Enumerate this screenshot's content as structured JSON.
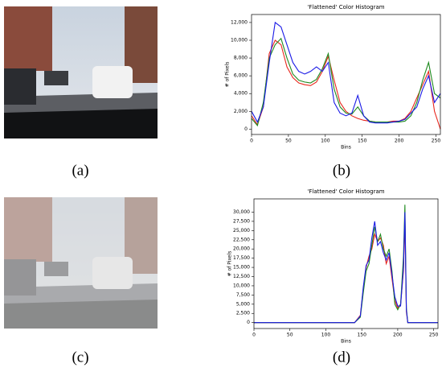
{
  "captions": [
    "(a)",
    "(b)",
    "(c)",
    "(d)"
  ],
  "chart_data": [
    {
      "type": "line",
      "title": "'Flattened' Color Histogram",
      "xlabel": "Bins",
      "ylabel": "# of Pixels",
      "x": [
        0,
        8,
        16,
        24,
        32,
        40,
        48,
        56,
        64,
        72,
        80,
        88,
        96,
        104,
        112,
        120,
        128,
        136,
        144,
        152,
        160,
        168,
        176,
        184,
        192,
        200,
        208,
        216,
        224,
        232,
        240,
        248,
        256
      ],
      "series": [
        {
          "name": "red",
          "color": "#e8261c",
          "values": [
            1500,
            500,
            2500,
            8500,
            10000,
            9500,
            7000,
            5800,
            5200,
            5000,
            4900,
            5300,
            6500,
            8200,
            5500,
            3000,
            2000,
            1500,
            1200,
            1000,
            900,
            800,
            800,
            800,
            900,
            900,
            1200,
            2000,
            3500,
            5000,
            6500,
            2000,
            0
          ]
        },
        {
          "name": "green",
          "color": "#1f8a1f",
          "values": [
            1200,
            400,
            3000,
            8000,
            9500,
            10200,
            8000,
            6200,
            5500,
            5300,
            5200,
            5600,
            6800,
            8500,
            4500,
            2500,
            1800,
            1700,
            2500,
            1500,
            900,
            800,
            800,
            800,
            800,
            800,
            900,
            1500,
            3000,
            5500,
            7500,
            4000,
            3500
          ]
        },
        {
          "name": "blue",
          "color": "#1a1ae6",
          "values": [
            2000,
            800,
            2500,
            7500,
            12000,
            11500,
            9500,
            7500,
            6500,
            6200,
            6500,
            7000,
            6500,
            7500,
            3000,
            1800,
            1500,
            1800,
            3800,
            1500,
            800,
            700,
            700,
            700,
            800,
            900,
            1100,
            1800,
            2500,
            4500,
            6000,
            3000,
            4000
          ]
        }
      ],
      "xlim": [
        0,
        256
      ],
      "xticks": [
        0,
        50,
        100,
        150,
        200,
        250
      ],
      "ylim": [
        -600,
        12900
      ],
      "yticks": [
        0,
        {
          "value": 2000,
          "label": "2,000"
        },
        {
          "value": 4000,
          "label": "4,000"
        },
        {
          "value": 6000,
          "label": "6,000"
        },
        {
          "value": 8000,
          "label": "8,000"
        },
        {
          "value": 10000,
          "label": "10,000"
        },
        {
          "value": 12000,
          "label": "12,000"
        }
      ]
    },
    {
      "type": "line",
      "title": "'Flattened' Color Histogram",
      "xlabel": "Bins",
      "ylabel": "# of Pixels",
      "x": [
        0,
        50,
        100,
        140,
        148,
        152,
        156,
        160,
        164,
        168,
        172,
        176,
        180,
        184,
        188,
        192,
        196,
        200,
        204,
        208,
        210,
        212,
        214,
        218,
        230,
        256
      ],
      "series": [
        {
          "name": "red",
          "color": "#e8261c",
          "values": [
            0,
            0,
            0,
            0,
            2000,
            9000,
            15000,
            18000,
            20000,
            24000,
            22000,
            23000,
            21000,
            16000,
            18000,
            12000,
            6000,
            4000,
            5000,
            14000,
            28000,
            3000,
            0,
            0,
            0,
            0
          ]
        },
        {
          "name": "green",
          "color": "#1f8a1f",
          "values": [
            0,
            0,
            0,
            0,
            1500,
            8000,
            14000,
            16000,
            21000,
            26000,
            22000,
            24000,
            20000,
            18000,
            20000,
            14000,
            5000,
            3500,
            5000,
            18000,
            32000,
            4000,
            0,
            0,
            0,
            0
          ]
        },
        {
          "name": "blue",
          "color": "#1a1ae6",
          "values": [
            0,
            0,
            0,
            0,
            1800,
            9500,
            15500,
            17000,
            23000,
            27500,
            21000,
            22000,
            19000,
            17000,
            19000,
            13000,
            7000,
            4500,
            4500,
            15000,
            30000,
            3500,
            0,
            0,
            0,
            0
          ]
        }
      ],
      "xlim": [
        0,
        256
      ],
      "xticks": [
        0,
        50,
        100,
        150,
        200,
        250
      ],
      "ylim": [
        -1600,
        33600
      ],
      "yticks": [
        0,
        {
          "value": 2500,
          "label": "2,500"
        },
        {
          "value": 5000,
          "label": "5,000"
        },
        {
          "value": 7500,
          "label": "7,500"
        },
        {
          "value": 10000,
          "label": "10,000"
        },
        {
          "value": 12500,
          "label": "12,500"
        },
        {
          "value": 15000,
          "label": "15,000"
        },
        {
          "value": 17500,
          "label": "17,500"
        },
        {
          "value": 20000,
          "label": "20,000"
        },
        {
          "value": 22500,
          "label": "22,500"
        },
        {
          "value": 25000,
          "label": "25,000"
        },
        {
          "value": 27500,
          "label": "27,500"
        },
        {
          "value": 30000,
          "label": "30,000"
        }
      ]
    }
  ]
}
